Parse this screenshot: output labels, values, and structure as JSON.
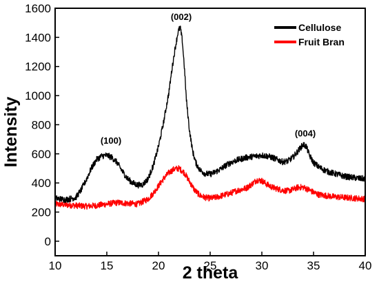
{
  "chart_data": {
    "type": "line",
    "title": "",
    "xlabel": "2 theta",
    "ylabel": "Intensity",
    "xlim": [
      10,
      40
    ],
    "ylim": [
      -100,
      1600
    ],
    "xticks": [
      10,
      15,
      20,
      25,
      30,
      35,
      40
    ],
    "yticks": [
      0,
      200,
      400,
      600,
      800,
      1000,
      1200,
      1400,
      1600
    ],
    "grid": false,
    "legend_position": "top-right",
    "series": [
      {
        "name": "Cellulose",
        "color": "#000000",
        "x": [
          10,
          11,
          12,
          12.5,
          13,
          13.5,
          14,
          14.5,
          15,
          15.5,
          16,
          16.5,
          17,
          17.5,
          18,
          18.5,
          19,
          19.5,
          20,
          20.5,
          21,
          21.3,
          21.6,
          21.9,
          22.1,
          22.3,
          22.5,
          22.7,
          23,
          23.3,
          23.6,
          24,
          24.5,
          25,
          25.5,
          26,
          26.5,
          27,
          27.5,
          28,
          28.5,
          29,
          29.5,
          30,
          30.5,
          31,
          31.5,
          32,
          32.5,
          33,
          33.5,
          34,
          34.3,
          34.6,
          35,
          35.5,
          36,
          36.5,
          37,
          37.5,
          38,
          38.5,
          39,
          39.5,
          40
        ],
        "values": [
          295,
          285,
          300,
          350,
          420,
          500,
          560,
          585,
          590,
          575,
          540,
          480,
          430,
          400,
          385,
          390,
          430,
          520,
          650,
          820,
          1020,
          1180,
          1320,
          1440,
          1470,
          1380,
          1200,
          970,
          760,
          620,
          540,
          490,
          465,
          460,
          475,
          495,
          520,
          540,
          555,
          565,
          575,
          580,
          585,
          590,
          585,
          575,
          560,
          545,
          550,
          575,
          620,
          665,
          650,
          590,
          540,
          510,
          490,
          475,
          465,
          455,
          445,
          440,
          435,
          430,
          430
        ]
      },
      {
        "name": "Fruit Bran",
        "color": "#ff0000",
        "x": [
          10,
          11,
          12,
          13,
          14,
          15,
          16,
          17,
          18,
          19,
          19.5,
          20,
          20.5,
          21,
          21.5,
          22,
          22.5,
          23,
          23.5,
          24,
          24.5,
          25,
          25.5,
          26,
          26.5,
          27,
          27.5,
          28,
          28.5,
          29,
          29.5,
          30,
          30.5,
          31,
          31.5,
          32,
          32.5,
          33,
          33.5,
          34,
          34.5,
          35,
          35.5,
          36,
          37,
          38,
          39,
          40
        ],
        "values": [
          255,
          250,
          245,
          240,
          245,
          255,
          265,
          260,
          255,
          290,
          330,
          380,
          430,
          470,
          495,
          500,
          470,
          410,
          350,
          315,
          300,
          295,
          300,
          310,
          320,
          330,
          345,
          355,
          365,
          390,
          420,
          415,
          390,
          370,
          360,
          350,
          345,
          355,
          370,
          370,
          355,
          335,
          320,
          315,
          305,
          300,
          295,
          290
        ]
      }
    ],
    "annotations": [
      {
        "label": "(100)",
        "x": 15.4,
        "y": 670
      },
      {
        "label": "(002)",
        "x": 22.2,
        "y": 1520
      },
      {
        "label": "(004)",
        "x": 34.2,
        "y": 720
      }
    ]
  }
}
